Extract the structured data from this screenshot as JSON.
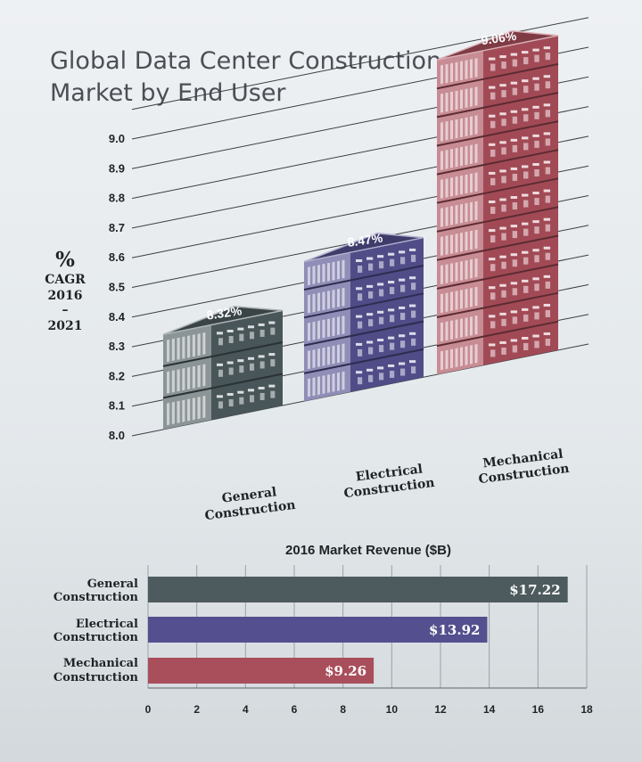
{
  "colors": {
    "general": "#4d5a5e",
    "electrical": "#54508f",
    "mechanical": "#a94e5b",
    "background_top": "#eaeef0",
    "background_bottom": "#d5dbde"
  },
  "chart_data": [
    {
      "type": "bar",
      "style": "3d-building",
      "title_line1": "Global Data Center Construction",
      "title_line2": "Market by End User",
      "ylabel_lines": [
        "%",
        "CAGR",
        "2016",
        "–",
        "2021"
      ],
      "ylim": [
        8.0,
        9.1
      ],
      "yticks": [
        "8.0",
        "8.1",
        "8.2",
        "8.3",
        "8.4",
        "8.5",
        "8.6",
        "8.7",
        "8.8",
        "8.9",
        "9.0"
      ],
      "grid": true,
      "categories": [
        {
          "line1": "General",
          "line2": "Construction"
        },
        {
          "line1": "Electrical",
          "line2": "Construction"
        },
        {
          "line1": "Mechanical",
          "line2": "Construction"
        }
      ],
      "values": [
        8.32,
        8.47,
        9.06
      ],
      "value_labels": [
        "8.32%",
        "8.47%",
        "9.06%"
      ]
    },
    {
      "type": "bar",
      "orientation": "horizontal",
      "title": "2016 Market Revenue ($B)",
      "categories": [
        {
          "line1": "General",
          "line2": "Construction"
        },
        {
          "line1": "Electrical",
          "line2": "Construction"
        },
        {
          "line1": "Mechanical",
          "line2": "Construction"
        }
      ],
      "values": [
        17.22,
        13.92,
        9.26
      ],
      "value_labels": [
        "$17.22",
        "$13.92",
        "$9.26"
      ],
      "xlim": [
        0,
        18
      ],
      "xticks": [
        "0",
        "2",
        "4",
        "6",
        "8",
        "10",
        "12",
        "14",
        "16",
        "18"
      ]
    }
  ]
}
